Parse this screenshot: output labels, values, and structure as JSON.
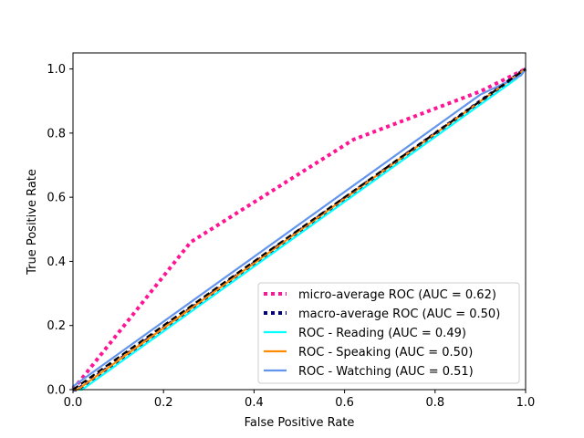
{
  "chart_data": {
    "type": "line",
    "title": "",
    "xlabel": "False Positive Rate",
    "ylabel": "True Positive Rate",
    "xlim": [
      0.0,
      1.0
    ],
    "ylim": [
      0.0,
      1.05
    ],
    "xticks": [
      0.0,
      0.2,
      0.4,
      0.6,
      0.8,
      1.0
    ],
    "yticks": [
      0.0,
      0.2,
      0.4,
      0.6,
      0.8,
      1.0
    ],
    "xtick_labels": [
      "0.0",
      "0.2",
      "0.4",
      "0.6",
      "0.8",
      "1.0"
    ],
    "ytick_labels": [
      "0.0",
      "0.2",
      "0.4",
      "0.6",
      "0.8",
      "1.0"
    ],
    "grid": false,
    "legend_position": "lower-right",
    "series": [
      {
        "name": "micro-average ROC (AUC = 0.62)",
        "color": "#ff1493",
        "style": "dotted",
        "x": [
          0.0,
          0.26,
          0.62,
          0.9,
          1.0
        ],
        "y": [
          0.0,
          0.46,
          0.78,
          0.93,
          1.0
        ]
      },
      {
        "name": "macro-average ROC (AUC = 0.50)",
        "color": "#000080",
        "style": "dotted",
        "x": [
          0.0,
          0.01,
          0.99,
          1.0
        ],
        "y": [
          0.0,
          0.0,
          0.99,
          1.0
        ]
      },
      {
        "name": "ROC - Reading (AUC = 0.49)",
        "color": "#00ffff",
        "style": "solid",
        "x": [
          0.0,
          0.02,
          0.98,
          1.0
        ],
        "y": [
          0.0,
          0.0,
          0.97,
          1.0
        ]
      },
      {
        "name": "ROC - Speaking (AUC = 0.50)",
        "color": "#ff8c00",
        "style": "solid",
        "x": [
          0.0,
          0.01,
          0.99,
          1.0
        ],
        "y": [
          0.0,
          0.0,
          0.99,
          1.0
        ]
      },
      {
        "name": "ROC - Watching (AUC = 0.51)",
        "color": "#6495ed",
        "style": "solid",
        "x": [
          0.0,
          0.0,
          0.9,
          0.99,
          1.0
        ],
        "y": [
          0.0,
          0.01,
          0.92,
          0.98,
          1.0
        ]
      }
    ],
    "reference_line": {
      "color": "#000000",
      "style": "dashed",
      "x": [
        0.0,
        1.0
      ],
      "y": [
        0.0,
        1.0
      ]
    }
  }
}
